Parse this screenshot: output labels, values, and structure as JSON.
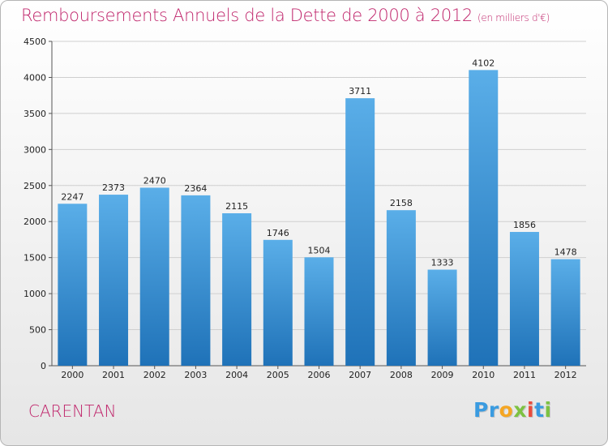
{
  "title": "Remboursements Annuels de la Dette de 2000 à 2012",
  "unit": "(en milliers d'€)",
  "commune": "CARENTAN",
  "logo": {
    "letters": [
      "P",
      "r",
      "o",
      "x",
      "i",
      "t",
      "i"
    ],
    "colors": [
      "#3a9be0",
      "#3a9be0",
      "#f5a623",
      "#7dc242",
      "#e84c3d",
      "#3a9be0",
      "#7dc242"
    ]
  },
  "colors": {
    "bar_top": "#5aaee8",
    "bar_bottom": "#1f72b8",
    "title": "#c0266c"
  },
  "chart_data": {
    "type": "bar",
    "categories": [
      "2000",
      "2001",
      "2002",
      "2003",
      "2004",
      "2005",
      "2006",
      "2007",
      "2008",
      "2009",
      "2010",
      "2011",
      "2012"
    ],
    "values": [
      2247,
      2373,
      2470,
      2364,
      2115,
      1746,
      1504,
      3711,
      2158,
      1333,
      4102,
      1856,
      1478
    ],
    "ylim": [
      0,
      4500
    ],
    "yticks": [
      0,
      500,
      1000,
      1500,
      2000,
      2500,
      3000,
      3500,
      4000,
      4500
    ],
    "grid": true,
    "legend": "none"
  }
}
